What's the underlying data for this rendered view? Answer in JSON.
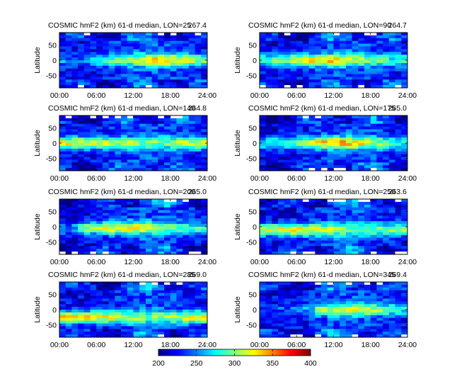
{
  "figure": {
    "panels": [
      {
        "title": "COSMIC hmF2 (km) 61-d median, LON=25",
        "mean": "267.4",
        "lon": 25
      },
      {
        "title": "COSMIC hmF2 (km) 61-d median, LON=90",
        "mean": "264.7",
        "lon": 90
      },
      {
        "title": "COSMIC hmF2 (km) 61-d median, LON=140",
        "mean": "264.8",
        "lon": 140
      },
      {
        "title": "COSMIC hmF2 (km) 61-d median, LON=175",
        "mean": "265.0",
        "lon": 175
      },
      {
        "title": "COSMIC hmF2 (km) 61-d median, LON=200",
        "mean": "265.0",
        "lon": 200
      },
      {
        "title": "COSMIC hmF2 (km) 61-d median, LON=250",
        "mean": "263.6",
        "lon": 250
      },
      {
        "title": "COSMIC hmF2 (km) 61-d median, LON=285",
        "mean": "269.0",
        "lon": 285
      },
      {
        "title": "COSMIC hmF2 (km) 61-d median, LON=345",
        "mean": "269.4",
        "lon": 345
      }
    ]
  },
  "chart_data": {
    "type": "heatmap",
    "ylabel": "Latitude",
    "xlabel": "",
    "x_ticks": [
      "00:00",
      "06:00",
      "12:00",
      "18:00",
      "24:00"
    ],
    "y_ticks": [
      "50",
      "0",
      "-50"
    ],
    "xlim": [
      0,
      24
    ],
    "ylim": [
      -90,
      90
    ],
    "colorbar": {
      "ticks": [
        "200",
        "250",
        "300",
        "350",
        "400"
      ],
      "range": [
        200,
        400
      ],
      "colormap": "jet"
    },
    "panels": [
      {
        "lon": 25,
        "ridge_center_lat": 0,
        "ridge_peak_hour": 18,
        "ridge_peak_value": 345,
        "ridge_start_hour": 7
      },
      {
        "lon": 90,
        "ridge_center_lat": 0,
        "ridge_peak_hour": 9,
        "ridge_peak_value": 350,
        "ridge_start_hour": 2
      },
      {
        "lon": 140,
        "ridge_center_lat": 0,
        "ridge_peak_hour": 3,
        "ridge_peak_value": 355,
        "ridge_start_hour": 0
      },
      {
        "lon": 175,
        "ridge_center_lat": 0,
        "ridge_peak_hour": 12,
        "ridge_peak_value": 350,
        "ridge_start_hour": 0
      },
      {
        "lon": 200,
        "ridge_center_lat": -5,
        "ridge_peak_hour": 9,
        "ridge_peak_value": 350,
        "ridge_start_hour": 5
      },
      {
        "lon": 250,
        "ridge_center_lat": -10,
        "ridge_peak_hour": 5,
        "ridge_peak_value": 355,
        "ridge_start_hour": 2
      },
      {
        "lon": 285,
        "ridge_center_lat": -25,
        "ridge_peak_hour": 3,
        "ridge_peak_value": 365,
        "ridge_start_hour": 0
      },
      {
        "lon": 345,
        "ridge_center_lat": 0,
        "ridge_peak_hour": 15,
        "ridge_peak_value": 330,
        "ridge_start_hour": 11
      }
    ]
  }
}
